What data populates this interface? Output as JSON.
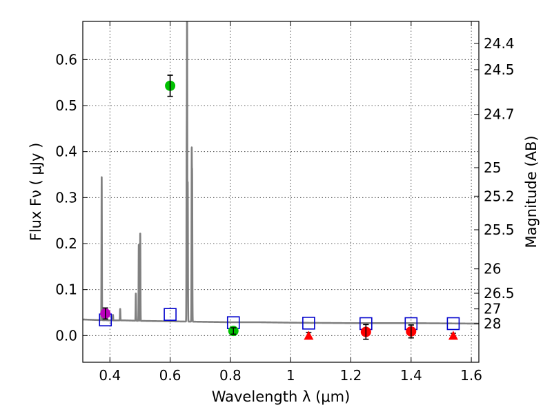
{
  "chart_data": {
    "type": "scatter",
    "xlabel": "Wavelength  λ (μm)",
    "ylabel": "Flux  Fν  ( μJy )",
    "right_ylabel": "Magnitude (AB)",
    "xlim": [
      0.31,
      1.625
    ],
    "ylim": [
      -0.058,
      0.683
    ],
    "x_ticks": [
      0.4,
      0.6,
      0.8,
      1.0,
      1.2,
      1.4,
      1.6
    ],
    "x_tick_labels": [
      "0.4",
      "0.6",
      "0.8",
      "1",
      "1.2",
      "1.4",
      "1.6"
    ],
    "y_ticks": [
      0.0,
      0.1,
      0.2,
      0.3,
      0.4,
      0.5,
      0.6
    ],
    "y_tick_labels": [
      "0.0",
      "0.1",
      "0.2",
      "0.3",
      "0.4",
      "0.5",
      "0.6"
    ],
    "grid": true,
    "right_axis_ticks": [
      {
        "label": "24.4",
        "flux": 0.635
      },
      {
        "label": "24.5",
        "flux": 0.578
      },
      {
        "label": "24.7",
        "flux": 0.481
      },
      {
        "label": "25",
        "flux": 0.365
      },
      {
        "label": "25.2",
        "flux": 0.303
      },
      {
        "label": "25.5",
        "flux": 0.23
      },
      {
        "label": "26",
        "flux": 0.145
      },
      {
        "label": "26.5",
        "flux": 0.092
      },
      {
        "label": "27",
        "flux": 0.058
      },
      {
        "label": "28",
        "flux": 0.026
      }
    ],
    "series": [
      {
        "name": "model spectrum",
        "kind": "line",
        "color": "#808080",
        "continuum": [
          [
            0.31,
            0.035
          ],
          [
            0.35,
            0.034
          ],
          [
            0.4,
            0.033
          ],
          [
            0.45,
            0.033
          ],
          [
            0.5,
            0.032
          ],
          [
            0.6,
            0.031
          ],
          [
            0.7,
            0.03
          ],
          [
            0.8,
            0.029
          ],
          [
            0.9,
            0.029
          ],
          [
            1.0,
            0.028
          ],
          [
            1.2,
            0.027
          ],
          [
            1.4,
            0.027
          ],
          [
            1.625,
            0.026
          ]
        ],
        "emission_lines": [
          {
            "center": 0.3727,
            "peak": 0.348
          },
          {
            "center": 0.3869,
            "peak": 0.052
          },
          {
            "center": 0.4102,
            "peak": 0.045
          },
          {
            "center": 0.4341,
            "peak": 0.058
          },
          {
            "center": 0.4861,
            "peak": 0.092
          },
          {
            "center": 0.4959,
            "peak": 0.199
          },
          {
            "center": 0.5007,
            "peak": 0.224
          },
          {
            "center": 0.6548,
            "peak": 0.37
          },
          {
            "center": 0.6563,
            "peak": 0.7
          },
          {
            "center": 0.6584,
            "peak": 0.33
          },
          {
            "center": 0.6716,
            "peak": 0.385
          },
          {
            "center": 0.6731,
            "peak": 0.33
          }
        ]
      },
      {
        "name": "model band fluxes",
        "kind": "open-square",
        "color": "#0000cc",
        "points": [
          {
            "x": 0.385,
            "y": 0.034
          },
          {
            "x": 0.6,
            "y": 0.046
          },
          {
            "x": 0.81,
            "y": 0.028
          },
          {
            "x": 1.06,
            "y": 0.027
          },
          {
            "x": 1.25,
            "y": 0.026
          },
          {
            "x": 1.4,
            "y": 0.026
          },
          {
            "x": 1.54,
            "y": 0.026
          }
        ]
      },
      {
        "name": "blue band",
        "kind": "circle",
        "color": "#bb00bb",
        "points": [
          {
            "x": 0.385,
            "y": 0.048,
            "err": 0.012
          }
        ]
      },
      {
        "name": "optical detections",
        "kind": "circle",
        "color": "#00c000",
        "points": [
          {
            "x": 0.6,
            "y": 0.543,
            "err": 0.023
          },
          {
            "x": 0.81,
            "y": 0.01,
            "err": 0.007
          }
        ]
      },
      {
        "name": "near-IR detections",
        "kind": "circle",
        "color": "#ff0000",
        "points": [
          {
            "x": 1.25,
            "y": 0.008,
            "err": 0.016
          },
          {
            "x": 1.4,
            "y": 0.009,
            "err": 0.014
          }
        ]
      },
      {
        "name": "upper limits",
        "kind": "triangle",
        "color": "#ff0000",
        "points": [
          {
            "x": 1.06,
            "y": 0.0,
            "err": 0.007
          },
          {
            "x": 1.54,
            "y": 0.0,
            "err": 0.005
          }
        ]
      }
    ]
  }
}
